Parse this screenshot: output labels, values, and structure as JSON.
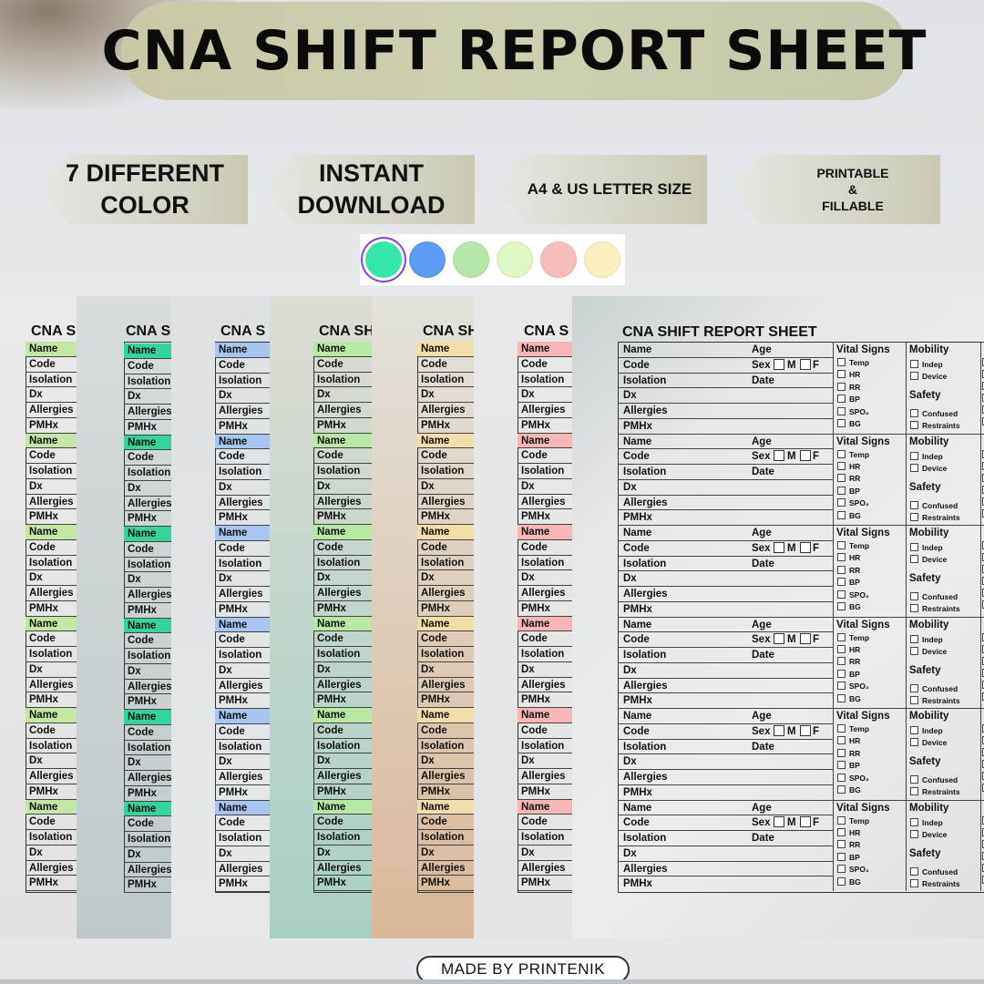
{
  "header": {
    "title": "CNA SHIFT REPORT SHEET"
  },
  "features": [
    {
      "lines": [
        "7 DIFFERENT",
        "COLOR"
      ]
    },
    {
      "lines": [
        "INSTANT",
        "DOWNLOAD"
      ]
    },
    {
      "lines": [
        "A4 & US LETTER SIZE"
      ]
    },
    {
      "lines": [
        "PRINTABLE",
        "&",
        "FILLABLE"
      ]
    }
  ],
  "swatches": [
    "#34e6a8",
    "#5b9cf5",
    "#b6e6a8",
    "#dff7c4",
    "#f8bcbc",
    "#fbefbf"
  ],
  "sheet": {
    "title_short": "CNA S",
    "title_short2": "CNA SH",
    "fields": [
      "Name",
      "Code",
      "Isolation",
      "Dx",
      "Allergies",
      "PMHx"
    ],
    "mid_fields": {
      "age": "Age",
      "sex": "Sex",
      "m": "M",
      "f": "F",
      "date": "Date"
    },
    "vitals": {
      "title": "Vital Signs",
      "items": [
        "Temp",
        "HR",
        "RR",
        "BP",
        "SPO₂",
        "BG"
      ]
    },
    "mobility": {
      "title": "Mobility",
      "items": [
        "Indep",
        "Device"
      ]
    },
    "safety": {
      "title": "Safety",
      "items": [
        "Confused",
        "Restraints"
      ]
    }
  },
  "footer": {
    "credit": "MADE BY PRINTENIK"
  }
}
